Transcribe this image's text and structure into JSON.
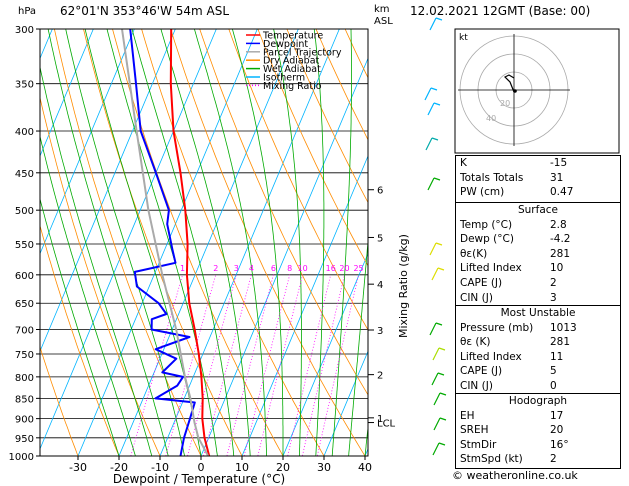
{
  "header": {
    "location": "62°01'N  353°46'W  54m  ASL",
    "datetime": "12.02.2021  12GMT  (Base: 00)",
    "hpa_label": "hPa",
    "km_label": "km",
    "asl_label": "ASL"
  },
  "colors": {
    "temperature": "#ff0000",
    "dewpoint": "#0000ff",
    "parcel": "#aaaaaa",
    "dry_adiabat": "#ff8c00",
    "wet_adiabat": "#00aa00",
    "isotherm": "#00b4ff",
    "mixing_ratio": "#ff00ff"
  },
  "chart_data": {
    "type": "line",
    "subtype": "skew-t",
    "xlabel": "Dewpoint / Temperature (°C)",
    "ylabel_right": "Mixing Ratio (g/kg)",
    "xlim": [
      -35,
      40
    ],
    "ylim": [
      1000,
      300
    ],
    "x_ticks": [
      -30,
      -20,
      -10,
      0,
      10,
      20,
      30,
      40
    ],
    "pressure_levels": [
      300,
      350,
      400,
      450,
      500,
      550,
      600,
      650,
      700,
      750,
      800,
      850,
      900,
      950,
      1000
    ],
    "km_ticks": [
      {
        "label": "6",
        "p": 472
      },
      {
        "label": "5",
        "p": 540
      },
      {
        "label": "4",
        "p": 616
      },
      {
        "label": "3",
        "p": 701
      },
      {
        "label": "2",
        "p": 795
      },
      {
        "label": "1",
        "p": 898
      },
      {
        "label": "LCL",
        "p": 910
      }
    ],
    "mixing_ratio_labels": [
      "1",
      "2",
      "3",
      "4",
      "6",
      "8",
      "10",
      "16",
      "20",
      "25"
    ],
    "mixing_ratio_values": [
      1,
      2,
      3,
      4,
      6,
      8,
      10,
      16,
      20,
      25
    ],
    "legend": [
      "Temperature",
      "Dewpoint",
      "Parcel Trajectory",
      "Dry Adiabat",
      "Wet Adiabat",
      "Isotherm",
      "Mixing Ratio"
    ],
    "legend_position": "top-right",
    "series": [
      {
        "name": "Temperature",
        "points": [
          [
            1013,
            2.8
          ],
          [
            1000,
            2
          ],
          [
            950,
            -1
          ],
          [
            900,
            -3.5
          ],
          [
            850,
            -5.5
          ],
          [
            800,
            -8
          ],
          [
            750,
            -11
          ],
          [
            700,
            -14.5
          ],
          [
            650,
            -18.5
          ],
          [
            600,
            -22
          ],
          [
            550,
            -25
          ],
          [
            500,
            -29
          ],
          [
            450,
            -34
          ],
          [
            400,
            -40
          ],
          [
            350,
            -45.5
          ],
          [
            300,
            -51
          ]
        ]
      },
      {
        "name": "Dewpoint",
        "points": [
          [
            1013,
            -4.2
          ],
          [
            1000,
            -5
          ],
          [
            950,
            -6
          ],
          [
            900,
            -6.5
          ],
          [
            860,
            -7
          ],
          [
            850,
            -17
          ],
          [
            820,
            -13
          ],
          [
            800,
            -12.5
          ],
          [
            790,
            -18
          ],
          [
            760,
            -16
          ],
          [
            740,
            -22
          ],
          [
            715,
            -15
          ],
          [
            700,
            -25
          ],
          [
            680,
            -26
          ],
          [
            670,
            -23
          ],
          [
            650,
            -26
          ],
          [
            620,
            -33
          ],
          [
            595,
            -35
          ],
          [
            590,
            -32
          ],
          [
            580,
            -26
          ],
          [
            560,
            -28
          ],
          [
            520,
            -32
          ],
          [
            500,
            -33
          ],
          [
            450,
            -40
          ],
          [
            400,
            -48
          ],
          [
            350,
            -54
          ],
          [
            300,
            -61
          ]
        ]
      },
      {
        "name": "Parcel Trajectory",
        "points": [
          [
            1013,
            2.8
          ],
          [
            950,
            -2.5
          ],
          [
            910,
            -5
          ],
          [
            850,
            -8.5
          ],
          [
            800,
            -12
          ],
          [
            700,
            -19
          ],
          [
            600,
            -28
          ],
          [
            500,
            -38
          ],
          [
            400,
            -49
          ],
          [
            300,
            -63
          ]
        ]
      }
    ]
  },
  "stats": {
    "k_label": "K",
    "k_value": "-15",
    "tt_label": "Totals Totals",
    "tt_value": "31",
    "pw_label": "PW (cm)",
    "pw_value": "0.47"
  },
  "surface": {
    "title": "Surface",
    "rows": [
      {
        "label": "Temp (°C)",
        "value": "2.8"
      },
      {
        "label": "Dewp (°C)",
        "value": "-4.2"
      },
      {
        "label": "θε(K)",
        "value": "281"
      },
      {
        "label": "Lifted Index",
        "value": "10"
      },
      {
        "label": "CAPE (J)",
        "value": "2"
      },
      {
        "label": "CIN (J)",
        "value": "3"
      }
    ]
  },
  "unstable": {
    "title": "Most Unstable",
    "rows": [
      {
        "label": "Pressure (mb)",
        "value": "1013"
      },
      {
        "label": "θε (K)",
        "value": "281"
      },
      {
        "label": "Lifted Index",
        "value": "11"
      },
      {
        "label": "CAPE (J)",
        "value": "5"
      },
      {
        "label": "CIN (J)",
        "value": "0"
      }
    ]
  },
  "hodograph_table": {
    "title": "Hodograph",
    "rows": [
      {
        "label": "EH",
        "value": "17"
      },
      {
        "label": "SREH",
        "value": "20"
      },
      {
        "label": "StmDir",
        "value": "16°"
      },
      {
        "label": "StmSpd (kt)",
        "value": "2"
      }
    ]
  },
  "hodograph": {
    "unit_label": "kt",
    "ring_labels": [
      "20",
      "40"
    ]
  },
  "footer": "© weatheronline.co.uk"
}
